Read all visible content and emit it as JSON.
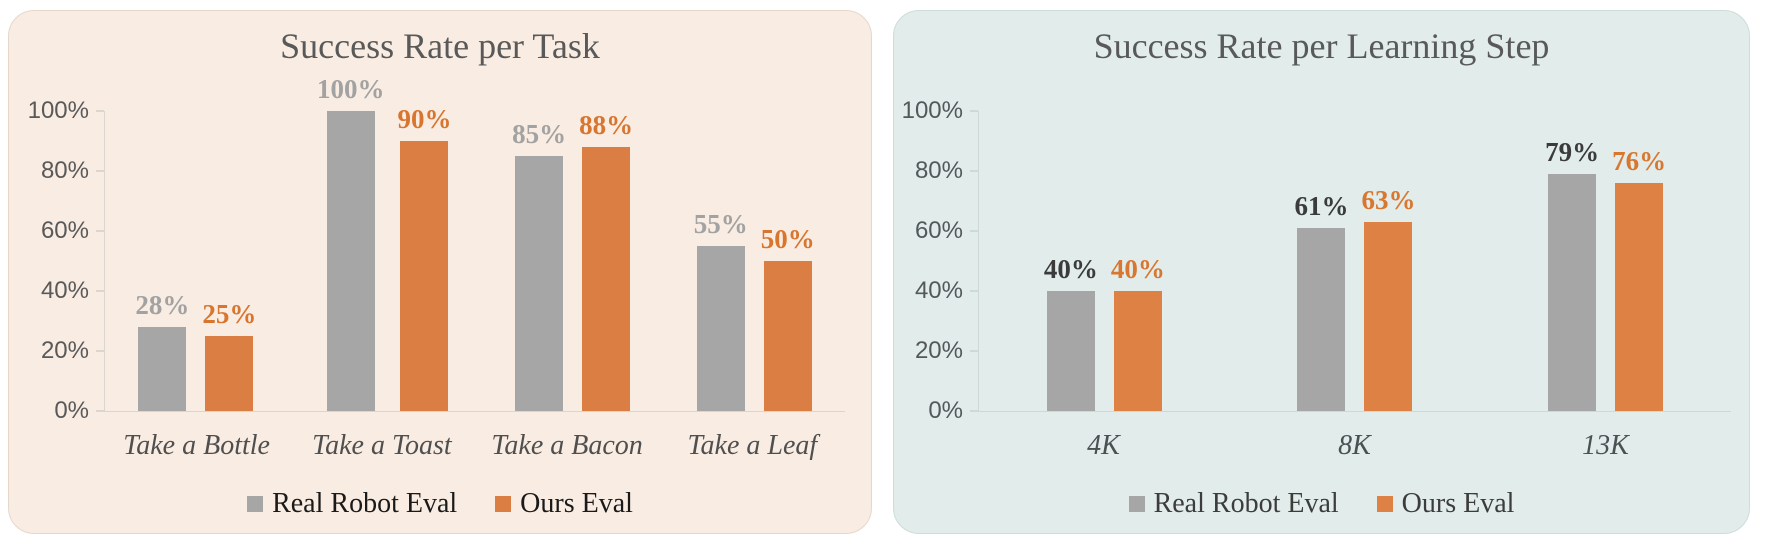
{
  "page": {
    "background": "#ffffff"
  },
  "chart_data": [
    {
      "type": "bar",
      "title": "Success Rate per Task",
      "categories": [
        "Take a Bottle",
        "Take a Toast",
        "Take a Bacon",
        "Take a Leaf"
      ],
      "series": [
        {
          "name": "Real Robot Eval",
          "values": [
            28,
            100,
            85,
            55
          ],
          "bar_color": "#a6a6a6",
          "label_color": "#a2a2a2"
        },
        {
          "name": "Ours Eval",
          "values": [
            25,
            90,
            88,
            50
          ],
          "bar_color": "#db7e44",
          "label_color": "#d8752f"
        }
      ],
      "value_suffix": "%",
      "ylim": [
        0,
        100
      ],
      "yticks": [
        0,
        20,
        40,
        60,
        80,
        100
      ],
      "ytick_labels": [
        "0%",
        "20%",
        "40%",
        "60%",
        "80%",
        "100%"
      ],
      "grid": false,
      "legend_position": "bottom",
      "style": {
        "panel_bg": "#f9ece2",
        "panel_border": "#e7d7cb",
        "axis_color": "#dcd5ce",
        "title_color": "#595959",
        "tick_label_color": "#595959",
        "category_label_color": "#4f4f4f",
        "legend_text_color": "#1a1a1a"
      }
    },
    {
      "type": "bar",
      "title": "Success Rate per Learning Step",
      "categories": [
        "4K",
        "8K",
        "13K"
      ],
      "series": [
        {
          "name": "Real Robot Eval",
          "values": [
            40,
            61,
            79
          ],
          "bar_color": "#a6a6a6",
          "label_color": "#3b3b3b"
        },
        {
          "name": "Ours Eval",
          "values": [
            40,
            63,
            76
          ],
          "bar_color": "#dd8145",
          "label_color": "#d8772f"
        }
      ],
      "value_suffix": "%",
      "ylim": [
        0,
        100
      ],
      "yticks": [
        0,
        20,
        40,
        60,
        80,
        100
      ],
      "ytick_labels": [
        "0%",
        "20%",
        "40%",
        "60%",
        "80%",
        "100%"
      ],
      "grid": false,
      "legend_position": "bottom",
      "style": {
        "panel_bg": "#e1eceb",
        "panel_border": "#cedcda",
        "axis_color": "#ccd9d8",
        "title_color": "#595959",
        "tick_label_color": "#54585a",
        "category_label_color": "#4b5052",
        "legend_text_color": "#3c3c3c"
      }
    }
  ]
}
